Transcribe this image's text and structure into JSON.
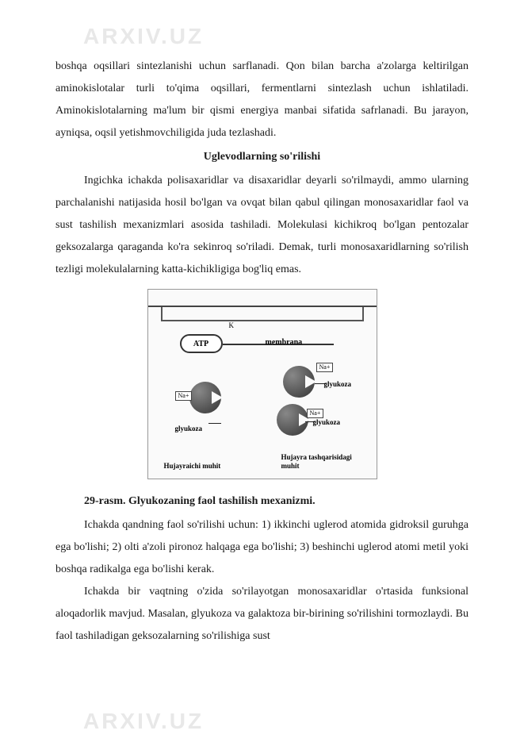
{
  "watermark": "ARXIV.UZ",
  "paragraphs": {
    "p1": "boshqa oqsillari sintezlanishi uchun sarflanadi. Qon bilan barcha a'zolarga keltirilgan aminokislotalar turli to'qima oqsillari, fermentlarni sintezlash uchun ishlatiladi. Aminokislotalarning ma'lum bir qismi energiya manbai sifatida safrlanadi. Bu jarayon, ayniqsa, oqsil yetishmovchiligida juda tezlashadi.",
    "title1": "Uglevodlarning so'rilishi",
    "p2": "Ingichka ichakda polisaxaridlar va disaxaridlar deyarli so'rilmaydi, ammo ularning parchalanishi natijasida hosil bo'lgan va ovqat bilan qabul qilingan monosaxaridlar faol va sust tashilish mexanizmlari asosida tashiladi. Molekulasi kichikroq bo'lgan pentozalar geksozalarga qaraganda ko'ra sekinroq so'riladi. Demak, turli monosaxaridlarning so'rilish tezligi molekulalarning katta-kichikligiga bog'liq emas.",
    "caption": "29-rasm. Glyukozaning faol tashilish mexanizmi.",
    "p3": "Ichakda qandning faol so'rilishi uchun: 1) ikkinchi uglerod atomida gidroksil guruhga ega bo'lishi; 2) olti a'zoli pironoz halqaga ega bo'lishi; 3) beshinchi uglerod atomi metil yoki boshqa radikalga ega bo'lishi kerak.",
    "p4": "Ichakda bir vaqtning o'zida so'rilayotgan monosaxaridlar o'rtasida funksional aloqadorlik mavjud. Masalan, glyukoza va galaktoza bir-birining so'rilishini tormozlaydi. Bu faol tashiladigan geksozalarning so'rilishiga sust"
  },
  "figure": {
    "atp": "ATP",
    "k": "K",
    "membrane": "membrana",
    "na": "Na+",
    "glyukoza": "glyukoza",
    "env_left": "Hujayraichi muhit",
    "env_right": "Hujayra tashqarisidagi muhit"
  }
}
